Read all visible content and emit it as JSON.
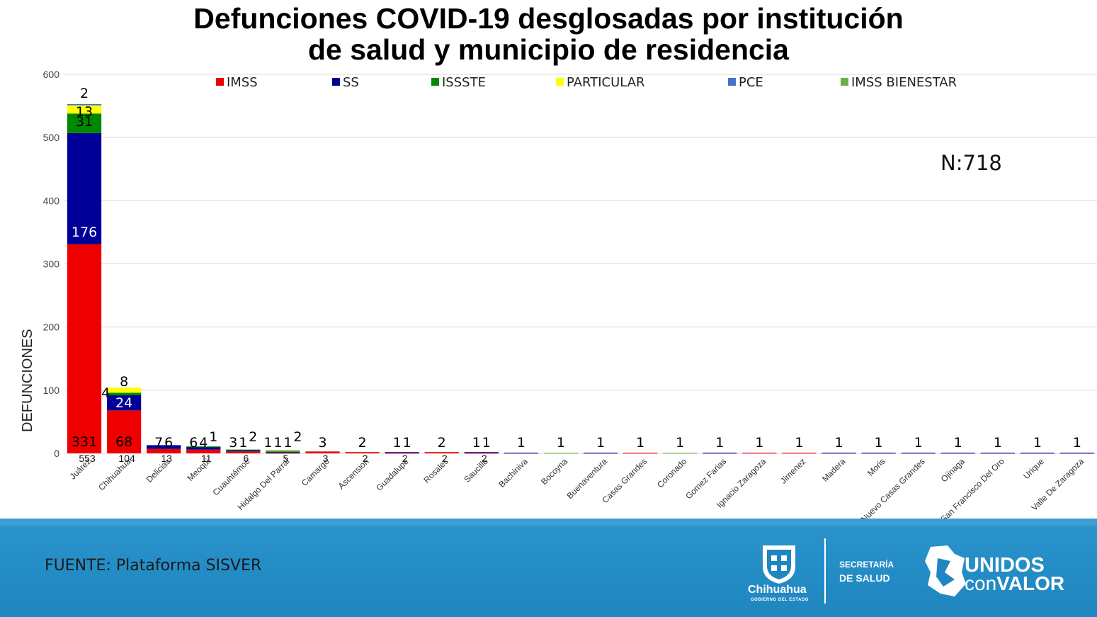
{
  "title_line1": "Defunciones COVID-19 desglosadas por institución",
  "title_line2": "de salud y municipio de residencia",
  "n_label": "N:718",
  "source": "FUENTE: Plataforma SISVER",
  "logos": {
    "chihuahua": "Chihuahua",
    "chihuahua_sub": "GOBIERNO DEL ESTADO",
    "secretaria_1": "SECRETARÍA",
    "secretaria_2": "DE SALUD",
    "unidos_1": "UNIDOS",
    "unidos_2a": "con",
    "unidos_2b": "VALOR"
  },
  "colors": {
    "IMSS": "#ee0000",
    "SS": "#000099",
    "ISSSTE": "#008800",
    "PARTICULAR": "#ffff00",
    "PCE": "#4472c4",
    "IMSS BIENESTAR": "#70ad47"
  },
  "chart_data": {
    "type": "bar",
    "stacked": true,
    "ylabel": "DEFUNCIONES",
    "ylim": [
      0,
      600
    ],
    "yticks": [
      0,
      100,
      200,
      300,
      400,
      500,
      600
    ],
    "grid": true,
    "legend_position": "top",
    "categories": [
      "Juárez",
      "Chihuahua",
      "Delicias",
      "Meoqui",
      "Cuauhtémoc",
      "Hidalgo Del Parral",
      "Camargo",
      "Ascension",
      "Guadalupe",
      "Rosales",
      "Saucillo",
      "Bachiniva",
      "Bocoyna",
      "Buenaventura",
      "Casas Grandes",
      "Coronado",
      "Gomez Farias",
      "Ignacio Zaragoza",
      "Jimenez",
      "Madera",
      "Moris",
      "Nuevo Casas Grandes",
      "Ojinaga",
      "San Francisco Del Oro",
      "Urique",
      "Valle De Zaragoza"
    ],
    "series": [
      {
        "name": "IMSS",
        "values": [
          331,
          68,
          7,
          6,
          3,
          1,
          3,
          2,
          1,
          2,
          1,
          0,
          0,
          0,
          1,
          0,
          0,
          1,
          1,
          0,
          0,
          0,
          0,
          0,
          0,
          0
        ]
      },
      {
        "name": "SS",
        "values": [
          176,
          24,
          6,
          4,
          2,
          1,
          0,
          0,
          1,
          0,
          1,
          1,
          0,
          1,
          0,
          0,
          1,
          0,
          0,
          1,
          1,
          1,
          1,
          1,
          1,
          1
        ]
      },
      {
        "name": "ISSSTE",
        "values": [
          31,
          4,
          0,
          1,
          1,
          1,
          0,
          0,
          0,
          0,
          0,
          0,
          0,
          0,
          0,
          0,
          0,
          0,
          0,
          0,
          0,
          0,
          0,
          0,
          0,
          0
        ]
      },
      {
        "name": "PARTICULAR",
        "values": [
          13,
          8,
          0,
          0,
          0,
          0,
          0,
          0,
          0,
          0,
          0,
          0,
          0,
          0,
          0,
          0,
          0,
          0,
          0,
          0,
          0,
          0,
          0,
          0,
          0,
          0
        ]
      },
      {
        "name": "PCE",
        "values": [
          2,
          0,
          0,
          0,
          0,
          0,
          0,
          0,
          0,
          0,
          0,
          0,
          0,
          0,
          0,
          0,
          0,
          0,
          0,
          0,
          0,
          0,
          0,
          0,
          0,
          0
        ]
      },
      {
        "name": "IMSS BIENESTAR",
        "values": [
          0,
          0,
          0,
          0,
          0,
          2,
          0,
          0,
          0,
          0,
          0,
          0,
          1,
          0,
          0,
          1,
          0,
          0,
          0,
          0,
          0,
          0,
          0,
          0,
          0,
          0
        ]
      }
    ],
    "segment_labels": [
      [
        "331",
        "176",
        "31",
        "13",
        "2"
      ],
      [
        "68",
        "24",
        "4",
        "8"
      ],
      [
        "7",
        "6"
      ],
      [
        "6",
        "4",
        "1"
      ],
      [
        "3",
        "1",
        "2"
      ],
      [
        "1",
        "1",
        "1",
        "2"
      ],
      [
        "3"
      ],
      [
        "2"
      ],
      [
        "1",
        "1"
      ],
      [
        "2"
      ],
      [
        "1",
        "1"
      ],
      [
        "1"
      ],
      [
        "1"
      ],
      [
        "1"
      ],
      [
        "1"
      ],
      [
        "1"
      ],
      [
        "1"
      ],
      [
        "1"
      ],
      [
        "1"
      ],
      [
        "1"
      ],
      [
        "1"
      ],
      [
        "1"
      ],
      [
        "1"
      ],
      [
        "1"
      ],
      [
        "1"
      ],
      [
        "1"
      ]
    ],
    "totals": [
      "553",
      "104",
      "13",
      "11",
      "6",
      "5",
      "3",
      "2",
      "2",
      "2",
      "2",
      "",
      "",
      "",
      "",
      "",
      "",
      "",
      "",
      "",
      "",
      "",
      "",
      "",
      "",
      ""
    ]
  }
}
